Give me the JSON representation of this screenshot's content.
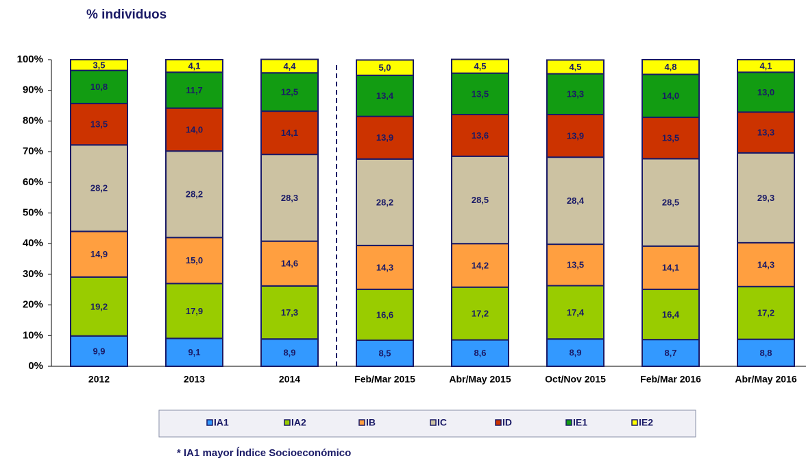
{
  "chart_data": {
    "type": "stacked_bar",
    "title": "% individuos",
    "footnote": "* IA1 mayor Índice Socioeconómico",
    "categories": [
      "2012",
      "2013",
      "2014",
      "Feb/Mar 2015",
      "Abr/May 2015",
      "Oct/Nov 2015",
      "Feb/Mar 2016",
      "Abr/May 2016"
    ],
    "series": [
      {
        "name": "IA1",
        "color": "#3399ff",
        "values": [
          9.9,
          9.1,
          8.9,
          8.5,
          8.6,
          8.9,
          8.7,
          8.8
        ],
        "value_labels": [
          "9,9",
          "9,1",
          "8,9",
          "8,5",
          "8,6",
          "8,9",
          "8,7",
          "8,8"
        ]
      },
      {
        "name": "IA2",
        "color": "#99cc00",
        "values": [
          19.2,
          17.9,
          17.3,
          16.6,
          17.2,
          17.4,
          16.4,
          17.2
        ],
        "value_labels": [
          "19,2",
          "17,9",
          "17,3",
          "16,6",
          "17,2",
          "17,4",
          "16,4",
          "17,2"
        ]
      },
      {
        "name": "IB",
        "color": "#ff9f40",
        "values": [
          14.9,
          15.0,
          14.6,
          14.3,
          14.2,
          13.5,
          14.1,
          14.3
        ],
        "value_labels": [
          "14,9",
          "15,0",
          "14,6",
          "14,3",
          "14,2",
          "13,5",
          "14,1",
          "14,3"
        ]
      },
      {
        "name": "IC",
        "color": "#ccc2a2",
        "values": [
          28.2,
          28.2,
          28.3,
          28.2,
          28.5,
          28.4,
          28.5,
          29.3
        ],
        "value_labels": [
          "28,2",
          "28,2",
          "28,3",
          "28,2",
          "28,5",
          "28,4",
          "28,5",
          "29,3"
        ]
      },
      {
        "name": "ID",
        "color": "#cc3300",
        "values": [
          13.5,
          14.0,
          14.1,
          13.9,
          13.6,
          13.9,
          13.5,
          13.3
        ],
        "value_labels": [
          "13,5",
          "14,0",
          "14,1",
          "13,9",
          "13,6",
          "13,9",
          "13,5",
          "13,3"
        ]
      },
      {
        "name": "IE1",
        "color": "#129c12",
        "values": [
          10.8,
          11.7,
          12.5,
          13.4,
          13.5,
          13.3,
          14.0,
          13.0
        ],
        "value_labels": [
          "10,8",
          "11,7",
          "12,5",
          "13,4",
          "13,5",
          "13,3",
          "14,0",
          "13,0"
        ]
      },
      {
        "name": "IE2",
        "color": "#ffff00",
        "values": [
          3.5,
          4.1,
          4.4,
          5.0,
          4.5,
          4.5,
          4.8,
          4.1
        ],
        "value_labels": [
          "3,5",
          "4,1",
          "4,4",
          "5,0",
          "4,5",
          "4,5",
          "4,8",
          "4,1"
        ]
      }
    ],
    "ylim": [
      0,
      100
    ],
    "yticks": [
      {
        "value": 0,
        "label": "0%"
      },
      {
        "value": 10,
        "label": "10%"
      },
      {
        "value": 20,
        "label": "20%"
      },
      {
        "value": 30,
        "label": "30%"
      },
      {
        "value": 40,
        "label": "40%"
      },
      {
        "value": 50,
        "label": "50%"
      },
      {
        "value": 60,
        "label": "60%"
      },
      {
        "value": 70,
        "label": "70%"
      },
      {
        "value": 80,
        "label": "80%"
      },
      {
        "value": 90,
        "label": "90%"
      },
      {
        "value": 100,
        "label": "100%"
      }
    ]
  }
}
